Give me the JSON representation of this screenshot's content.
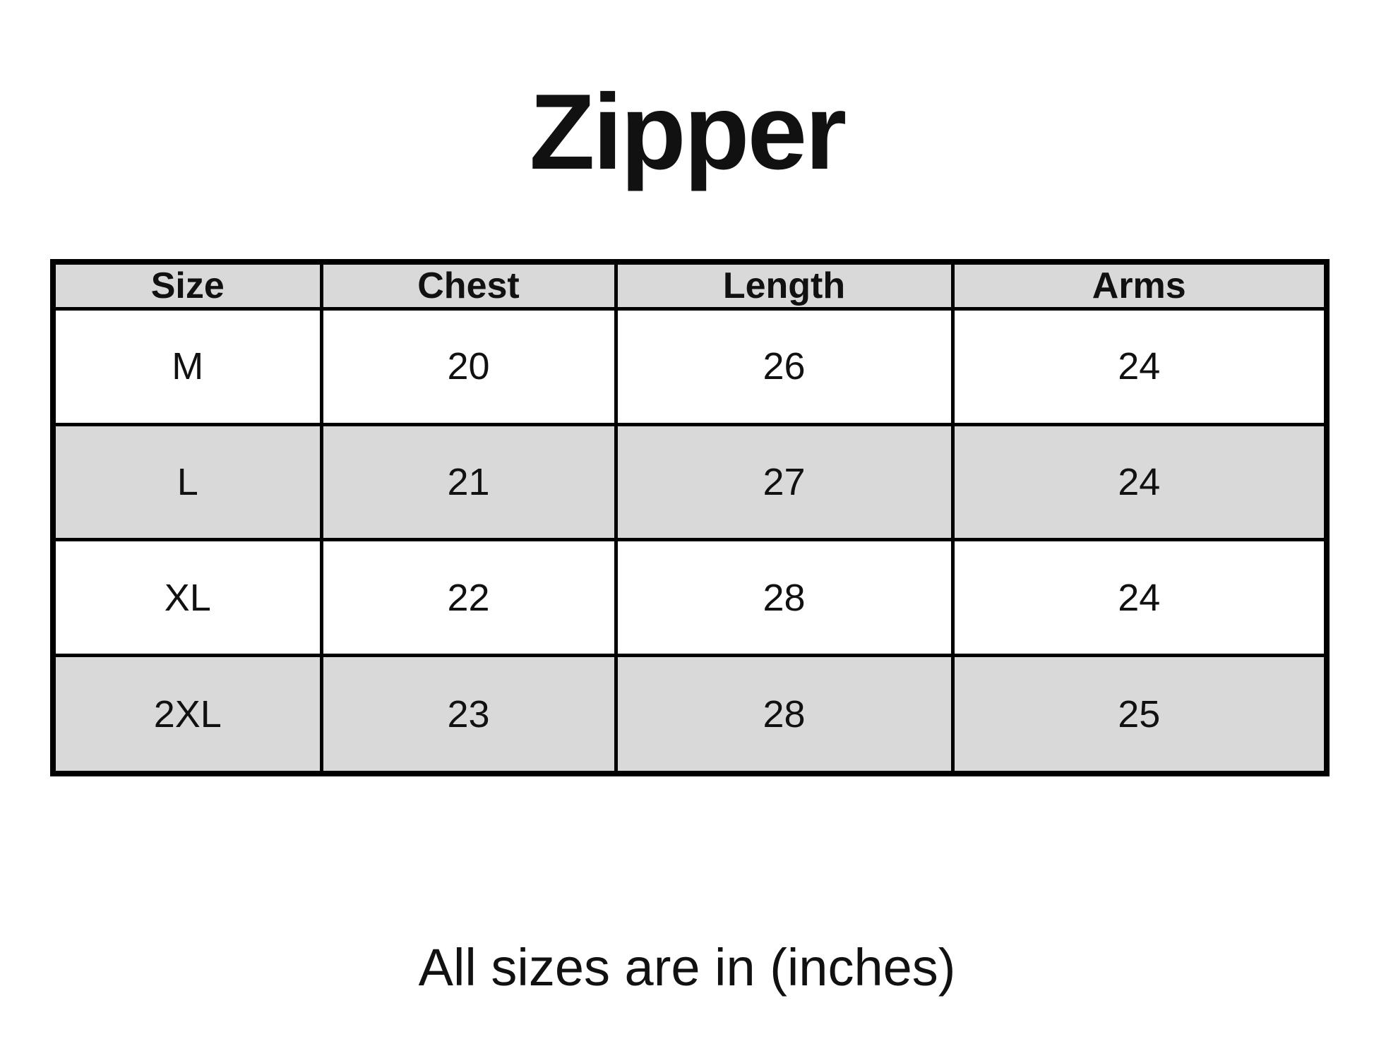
{
  "page": {
    "title": "Zipper",
    "footer_note": "All sizes are in (inches)"
  },
  "size_chart": {
    "columns": [
      "Size",
      "Chest",
      "Length",
      "Arms"
    ],
    "rows": [
      {
        "size": "M",
        "chest": "20",
        "length": "26",
        "arms": "24"
      },
      {
        "size": "L",
        "chest": "21",
        "length": "27",
        "arms": "24"
      },
      {
        "size": "XL",
        "chest": "22",
        "length": "28",
        "arms": "24"
      },
      {
        "size": "2XL",
        "chest": "23",
        "length": "28",
        "arms": "25"
      }
    ],
    "unit": "inches"
  },
  "chart_data": {
    "type": "table",
    "title": "Zipper",
    "columns": [
      "Size",
      "Chest",
      "Length",
      "Arms"
    ],
    "rows": [
      [
        "M",
        20,
        26,
        24
      ],
      [
        "L",
        21,
        27,
        24
      ],
      [
        "XL",
        22,
        28,
        24
      ],
      [
        "2XL",
        23,
        28,
        25
      ]
    ],
    "note": "All sizes are in (inches)",
    "unit": "inches"
  },
  "colors": {
    "page_bg": "#ffffff",
    "text": "#111111",
    "border": "#000000",
    "header_row_bg": "#d9d9d9",
    "alt_row_bg": "#d9d9d9",
    "row_bg": "#ffffff"
  }
}
